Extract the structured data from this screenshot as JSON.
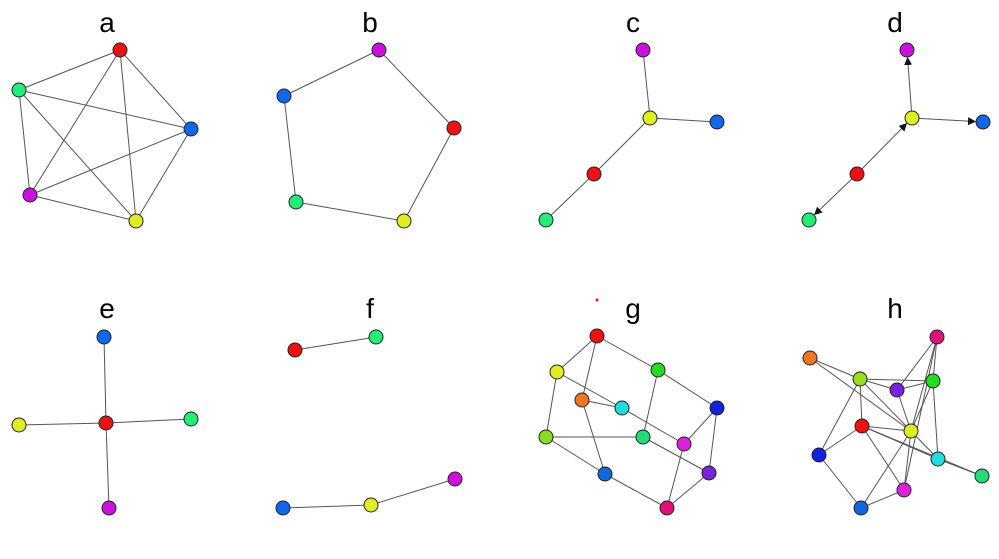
{
  "panels": [
    {
      "label": "a",
      "directed": false,
      "nodes": [
        {
          "id": "red",
          "color": "#ee1111"
        },
        {
          "id": "blue",
          "color": "#1166ee"
        },
        {
          "id": "yellow",
          "color": "#ddee22"
        },
        {
          "id": "purple",
          "color": "#cc11dd"
        },
        {
          "id": "green",
          "color": "#22ee77"
        }
      ],
      "edges": [
        [
          "red",
          "blue"
        ],
        [
          "red",
          "yellow"
        ],
        [
          "red",
          "purple"
        ],
        [
          "red",
          "green"
        ],
        [
          "blue",
          "yellow"
        ],
        [
          "blue",
          "purple"
        ],
        [
          "blue",
          "green"
        ],
        [
          "yellow",
          "purple"
        ],
        [
          "yellow",
          "green"
        ],
        [
          "purple",
          "green"
        ]
      ]
    },
    {
      "label": "b",
      "directed": false,
      "nodes": [
        {
          "id": "purple",
          "color": "#cc11dd"
        },
        {
          "id": "red",
          "color": "#ee1111"
        },
        {
          "id": "yellow",
          "color": "#ddee22"
        },
        {
          "id": "green",
          "color": "#22ee77"
        },
        {
          "id": "blue",
          "color": "#1166ee"
        }
      ],
      "edges": [
        [
          "purple",
          "red"
        ],
        [
          "red",
          "yellow"
        ],
        [
          "yellow",
          "green"
        ],
        [
          "green",
          "blue"
        ],
        [
          "blue",
          "purple"
        ]
      ]
    },
    {
      "label": "c",
      "directed": false,
      "nodes": [
        {
          "id": "purple",
          "color": "#cc11dd"
        },
        {
          "id": "yellow",
          "color": "#ddee22"
        },
        {
          "id": "blue",
          "color": "#1166ee"
        },
        {
          "id": "red",
          "color": "#ee1111"
        },
        {
          "id": "green",
          "color": "#22ee77"
        }
      ],
      "edges": [
        [
          "purple",
          "yellow"
        ],
        [
          "yellow",
          "blue"
        ],
        [
          "yellow",
          "red"
        ],
        [
          "red",
          "green"
        ]
      ]
    },
    {
      "label": "d",
      "directed": true,
      "nodes": [
        {
          "id": "purple",
          "color": "#cc11dd"
        },
        {
          "id": "yellow",
          "color": "#ddee22"
        },
        {
          "id": "blue",
          "color": "#1166ee"
        },
        {
          "id": "red",
          "color": "#ee1111"
        },
        {
          "id": "green",
          "color": "#22ee77"
        }
      ],
      "edges": [
        [
          "yellow",
          "purple"
        ],
        [
          "yellow",
          "blue"
        ],
        [
          "red",
          "yellow"
        ],
        [
          "red",
          "green"
        ]
      ]
    },
    {
      "label": "e",
      "directed": false,
      "nodes": [
        {
          "id": "blue",
          "color": "#1166ee"
        },
        {
          "id": "yellow",
          "color": "#ddee22"
        },
        {
          "id": "red",
          "color": "#ee1111"
        },
        {
          "id": "green",
          "color": "#22ee77"
        },
        {
          "id": "purple",
          "color": "#cc11dd"
        }
      ],
      "edges": [
        [
          "red",
          "blue"
        ],
        [
          "red",
          "yellow"
        ],
        [
          "red",
          "green"
        ],
        [
          "red",
          "purple"
        ]
      ]
    },
    {
      "label": "f",
      "directed": false,
      "nodes": [
        {
          "id": "red",
          "color": "#ee1111"
        },
        {
          "id": "green",
          "color": "#22ee77"
        },
        {
          "id": "blue",
          "color": "#1166ee"
        },
        {
          "id": "yellow",
          "color": "#ddee22"
        },
        {
          "id": "purple",
          "color": "#cc11dd"
        }
      ],
      "edges": [
        [
          "red",
          "green"
        ],
        [
          "blue",
          "yellow"
        ],
        [
          "yellow",
          "purple"
        ]
      ]
    },
    {
      "label": "g",
      "directed": false,
      "nodes": [
        {
          "id": "red",
          "color": "#ee1111"
        },
        {
          "id": "yellow",
          "color": "#ddee22"
        },
        {
          "id": "green",
          "color": "#22dd22"
        },
        {
          "id": "orange",
          "color": "#ee7722"
        },
        {
          "id": "cyan",
          "color": "#22dddd"
        },
        {
          "id": "blue",
          "color": "#1122dd"
        },
        {
          "id": "lime",
          "color": "#88dd22"
        },
        {
          "id": "mint",
          "color": "#22dd77"
        },
        {
          "id": "magenta",
          "color": "#dd22dd"
        },
        {
          "id": "azure",
          "color": "#1166dd"
        },
        {
          "id": "violet",
          "color": "#7722dd"
        },
        {
          "id": "pink",
          "color": "#dd1177"
        }
      ],
      "edges": [
        [
          "red",
          "yellow"
        ],
        [
          "red",
          "green"
        ],
        [
          "red",
          "orange"
        ],
        [
          "yellow",
          "cyan"
        ],
        [
          "yellow",
          "lime"
        ],
        [
          "green",
          "blue"
        ],
        [
          "green",
          "mint"
        ],
        [
          "orange",
          "cyan"
        ],
        [
          "orange",
          "azure"
        ],
        [
          "cyan",
          "magenta"
        ],
        [
          "lime",
          "mint"
        ],
        [
          "lime",
          "azure"
        ],
        [
          "mint",
          "violet"
        ],
        [
          "blue",
          "magenta"
        ],
        [
          "blue",
          "violet"
        ],
        [
          "magenta",
          "pink"
        ],
        [
          "azure",
          "pink"
        ],
        [
          "violet",
          "pink"
        ]
      ]
    },
    {
      "label": "h",
      "directed": false,
      "nodes": [
        {
          "id": "orange",
          "color": "#ee7722"
        },
        {
          "id": "lime",
          "color": "#99dd22"
        },
        {
          "id": "pink",
          "color": "#dd1177"
        },
        {
          "id": "violet",
          "color": "#7722dd"
        },
        {
          "id": "green",
          "color": "#22dd22"
        },
        {
          "id": "red",
          "color": "#ee1111"
        },
        {
          "id": "yellow",
          "color": "#ddee22"
        },
        {
          "id": "blue",
          "color": "#1122dd"
        },
        {
          "id": "cyan",
          "color": "#22dddd"
        },
        {
          "id": "mint",
          "color": "#22dd77"
        },
        {
          "id": "magenta",
          "color": "#dd22dd"
        },
        {
          "id": "azure",
          "color": "#1166dd"
        }
      ],
      "edges": [
        [
          "orange",
          "lime"
        ],
        [
          "orange",
          "yellow"
        ],
        [
          "lime",
          "violet"
        ],
        [
          "lime",
          "green"
        ],
        [
          "lime",
          "red"
        ],
        [
          "lime",
          "yellow"
        ],
        [
          "lime",
          "blue"
        ],
        [
          "pink",
          "violet"
        ],
        [
          "pink",
          "green"
        ],
        [
          "pink",
          "yellow"
        ],
        [
          "pink",
          "magenta"
        ],
        [
          "violet",
          "green"
        ],
        [
          "violet",
          "yellow"
        ],
        [
          "green",
          "yellow"
        ],
        [
          "green",
          "cyan"
        ],
        [
          "red",
          "yellow"
        ],
        [
          "red",
          "blue"
        ],
        [
          "red",
          "cyan"
        ],
        [
          "red",
          "magenta"
        ],
        [
          "red",
          "mint"
        ],
        [
          "yellow",
          "magenta"
        ],
        [
          "yellow",
          "azure"
        ],
        [
          "yellow",
          "cyan"
        ],
        [
          "blue",
          "azure"
        ],
        [
          "azure",
          "magenta"
        ],
        [
          "cyan",
          "mint"
        ]
      ]
    }
  ],
  "stray_dot_color": "#ee1111"
}
